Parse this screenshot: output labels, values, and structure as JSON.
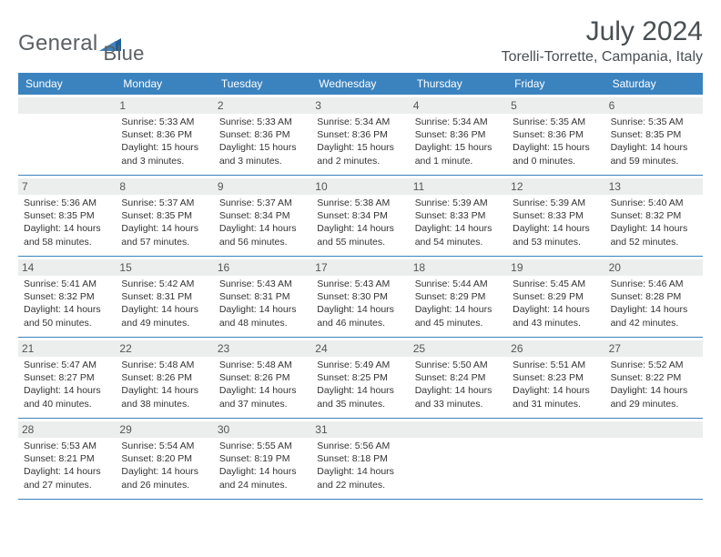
{
  "logo": {
    "text_a": "General",
    "text_b": "Blue"
  },
  "title": "July 2024",
  "location": "Torelli-Torrette, Campania, Italy",
  "colors": {
    "header_bg": "#3b83bf",
    "header_text": "#ffffff",
    "daynum_bg": "#eceded",
    "border": "#3b83bf",
    "body_text": "#333333",
    "title_text": "#4a4f53"
  },
  "weekdays": [
    "Sunday",
    "Monday",
    "Tuesday",
    "Wednesday",
    "Thursday",
    "Friday",
    "Saturday"
  ],
  "weeks": [
    [
      {
        "day": ""
      },
      {
        "day": "1",
        "sunrise": "Sunrise: 5:33 AM",
        "sunset": "Sunset: 8:36 PM",
        "daylight1": "Daylight: 15 hours",
        "daylight2": "and 3 minutes."
      },
      {
        "day": "2",
        "sunrise": "Sunrise: 5:33 AM",
        "sunset": "Sunset: 8:36 PM",
        "daylight1": "Daylight: 15 hours",
        "daylight2": "and 3 minutes."
      },
      {
        "day": "3",
        "sunrise": "Sunrise: 5:34 AM",
        "sunset": "Sunset: 8:36 PM",
        "daylight1": "Daylight: 15 hours",
        "daylight2": "and 2 minutes."
      },
      {
        "day": "4",
        "sunrise": "Sunrise: 5:34 AM",
        "sunset": "Sunset: 8:36 PM",
        "daylight1": "Daylight: 15 hours",
        "daylight2": "and 1 minute."
      },
      {
        "day": "5",
        "sunrise": "Sunrise: 5:35 AM",
        "sunset": "Sunset: 8:36 PM",
        "daylight1": "Daylight: 15 hours",
        "daylight2": "and 0 minutes."
      },
      {
        "day": "6",
        "sunrise": "Sunrise: 5:35 AM",
        "sunset": "Sunset: 8:35 PM",
        "daylight1": "Daylight: 14 hours",
        "daylight2": "and 59 minutes."
      }
    ],
    [
      {
        "day": "7",
        "sunrise": "Sunrise: 5:36 AM",
        "sunset": "Sunset: 8:35 PM",
        "daylight1": "Daylight: 14 hours",
        "daylight2": "and 58 minutes."
      },
      {
        "day": "8",
        "sunrise": "Sunrise: 5:37 AM",
        "sunset": "Sunset: 8:35 PM",
        "daylight1": "Daylight: 14 hours",
        "daylight2": "and 57 minutes."
      },
      {
        "day": "9",
        "sunrise": "Sunrise: 5:37 AM",
        "sunset": "Sunset: 8:34 PM",
        "daylight1": "Daylight: 14 hours",
        "daylight2": "and 56 minutes."
      },
      {
        "day": "10",
        "sunrise": "Sunrise: 5:38 AM",
        "sunset": "Sunset: 8:34 PM",
        "daylight1": "Daylight: 14 hours",
        "daylight2": "and 55 minutes."
      },
      {
        "day": "11",
        "sunrise": "Sunrise: 5:39 AM",
        "sunset": "Sunset: 8:33 PM",
        "daylight1": "Daylight: 14 hours",
        "daylight2": "and 54 minutes."
      },
      {
        "day": "12",
        "sunrise": "Sunrise: 5:39 AM",
        "sunset": "Sunset: 8:33 PM",
        "daylight1": "Daylight: 14 hours",
        "daylight2": "and 53 minutes."
      },
      {
        "day": "13",
        "sunrise": "Sunrise: 5:40 AM",
        "sunset": "Sunset: 8:32 PM",
        "daylight1": "Daylight: 14 hours",
        "daylight2": "and 52 minutes."
      }
    ],
    [
      {
        "day": "14",
        "sunrise": "Sunrise: 5:41 AM",
        "sunset": "Sunset: 8:32 PM",
        "daylight1": "Daylight: 14 hours",
        "daylight2": "and 50 minutes."
      },
      {
        "day": "15",
        "sunrise": "Sunrise: 5:42 AM",
        "sunset": "Sunset: 8:31 PM",
        "daylight1": "Daylight: 14 hours",
        "daylight2": "and 49 minutes."
      },
      {
        "day": "16",
        "sunrise": "Sunrise: 5:43 AM",
        "sunset": "Sunset: 8:31 PM",
        "daylight1": "Daylight: 14 hours",
        "daylight2": "and 48 minutes."
      },
      {
        "day": "17",
        "sunrise": "Sunrise: 5:43 AM",
        "sunset": "Sunset: 8:30 PM",
        "daylight1": "Daylight: 14 hours",
        "daylight2": "and 46 minutes."
      },
      {
        "day": "18",
        "sunrise": "Sunrise: 5:44 AM",
        "sunset": "Sunset: 8:29 PM",
        "daylight1": "Daylight: 14 hours",
        "daylight2": "and 45 minutes."
      },
      {
        "day": "19",
        "sunrise": "Sunrise: 5:45 AM",
        "sunset": "Sunset: 8:29 PM",
        "daylight1": "Daylight: 14 hours",
        "daylight2": "and 43 minutes."
      },
      {
        "day": "20",
        "sunrise": "Sunrise: 5:46 AM",
        "sunset": "Sunset: 8:28 PM",
        "daylight1": "Daylight: 14 hours",
        "daylight2": "and 42 minutes."
      }
    ],
    [
      {
        "day": "21",
        "sunrise": "Sunrise: 5:47 AM",
        "sunset": "Sunset: 8:27 PM",
        "daylight1": "Daylight: 14 hours",
        "daylight2": "and 40 minutes."
      },
      {
        "day": "22",
        "sunrise": "Sunrise: 5:48 AM",
        "sunset": "Sunset: 8:26 PM",
        "daylight1": "Daylight: 14 hours",
        "daylight2": "and 38 minutes."
      },
      {
        "day": "23",
        "sunrise": "Sunrise: 5:48 AM",
        "sunset": "Sunset: 8:26 PM",
        "daylight1": "Daylight: 14 hours",
        "daylight2": "and 37 minutes."
      },
      {
        "day": "24",
        "sunrise": "Sunrise: 5:49 AM",
        "sunset": "Sunset: 8:25 PM",
        "daylight1": "Daylight: 14 hours",
        "daylight2": "and 35 minutes."
      },
      {
        "day": "25",
        "sunrise": "Sunrise: 5:50 AM",
        "sunset": "Sunset: 8:24 PM",
        "daylight1": "Daylight: 14 hours",
        "daylight2": "and 33 minutes."
      },
      {
        "day": "26",
        "sunrise": "Sunrise: 5:51 AM",
        "sunset": "Sunset: 8:23 PM",
        "daylight1": "Daylight: 14 hours",
        "daylight2": "and 31 minutes."
      },
      {
        "day": "27",
        "sunrise": "Sunrise: 5:52 AM",
        "sunset": "Sunset: 8:22 PM",
        "daylight1": "Daylight: 14 hours",
        "daylight2": "and 29 minutes."
      }
    ],
    [
      {
        "day": "28",
        "sunrise": "Sunrise: 5:53 AM",
        "sunset": "Sunset: 8:21 PM",
        "daylight1": "Daylight: 14 hours",
        "daylight2": "and 27 minutes."
      },
      {
        "day": "29",
        "sunrise": "Sunrise: 5:54 AM",
        "sunset": "Sunset: 8:20 PM",
        "daylight1": "Daylight: 14 hours",
        "daylight2": "and 26 minutes."
      },
      {
        "day": "30",
        "sunrise": "Sunrise: 5:55 AM",
        "sunset": "Sunset: 8:19 PM",
        "daylight1": "Daylight: 14 hours",
        "daylight2": "and 24 minutes."
      },
      {
        "day": "31",
        "sunrise": "Sunrise: 5:56 AM",
        "sunset": "Sunset: 8:18 PM",
        "daylight1": "Daylight: 14 hours",
        "daylight2": "and 22 minutes."
      },
      {
        "day": ""
      },
      {
        "day": ""
      },
      {
        "day": ""
      }
    ]
  ]
}
